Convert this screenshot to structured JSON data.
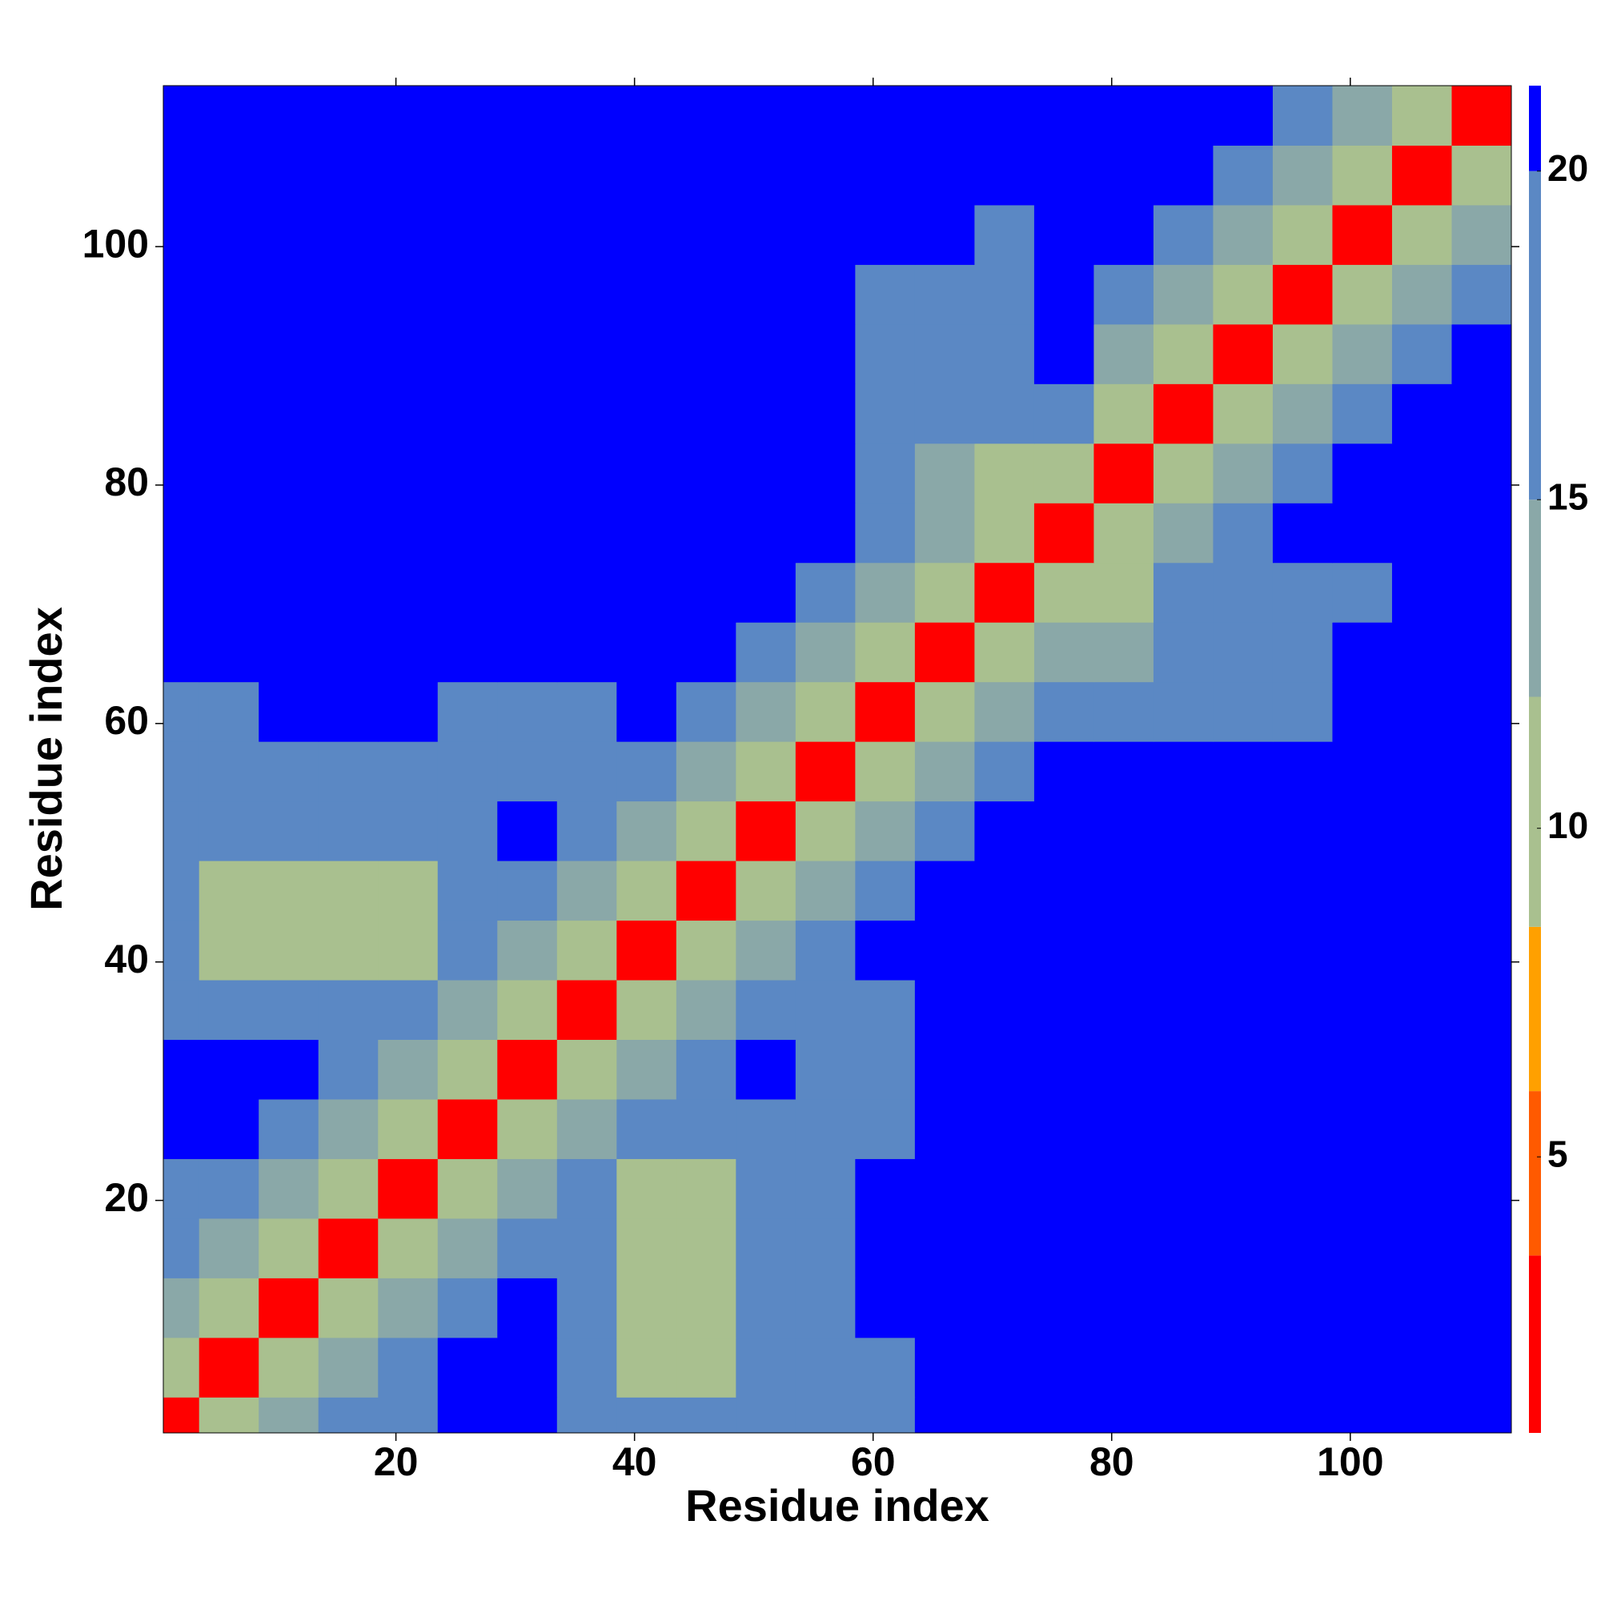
{
  "chart_data": {
    "type": "heatmap",
    "xlabel": "Residue index",
    "ylabel": "Residue index",
    "x": [
      1,
      6,
      11,
      16,
      21,
      26,
      31,
      36,
      41,
      46,
      51,
      56,
      61,
      66,
      71,
      76,
      81,
      86,
      91,
      96,
      101,
      106,
      111
    ],
    "y": [
      1,
      6,
      11,
      16,
      21,
      26,
      31,
      36,
      41,
      46,
      51,
      56,
      61,
      66,
      71,
      76,
      81,
      86,
      91,
      96,
      101,
      106,
      111
    ],
    "xlim": [
      0.5,
      113.5
    ],
    "ylim": [
      0.5,
      113.5
    ],
    "xticks": [
      20,
      40,
      60,
      80,
      100
    ],
    "yticks": [
      20,
      40,
      60,
      80,
      100
    ],
    "clim": [
      0.8,
      21.3
    ],
    "cticks": [
      5,
      10,
      15,
      20
    ],
    "colorscale": [
      {
        "max": 3.5,
        "color": "#ff0000"
      },
      {
        "max": 6,
        "color": "#ff5a00"
      },
      {
        "max": 8.5,
        "color": "#ffa000"
      },
      {
        "max": 12,
        "color": "#a9c08f"
      },
      {
        "max": 15,
        "color": "#8aa8a8"
      },
      {
        "max": 20,
        "color": "#5b88c4"
      },
      {
        "max": 21.3,
        "color": "#0000ff"
      }
    ],
    "z": [
      [
        2,
        9,
        14,
        18,
        17,
        21,
        21,
        16,
        16,
        16,
        16,
        16,
        17,
        21,
        21,
        21,
        21,
        21,
        21,
        21,
        21,
        21,
        21
      ],
      [
        9,
        2,
        9,
        14,
        18,
        21,
        21,
        16,
        12,
        12,
        16,
        16,
        17,
        21,
        21,
        21,
        21,
        21,
        21,
        21,
        21,
        21,
        21
      ],
      [
        14,
        9,
        2,
        9,
        14,
        18,
        21,
        16,
        12,
        12,
        16,
        16,
        21,
        21,
        21,
        21,
        21,
        21,
        21,
        21,
        21,
        21,
        21
      ],
      [
        18,
        14,
        9,
        2,
        9,
        14,
        18,
        16,
        12,
        12,
        16,
        16,
        21,
        21,
        21,
        21,
        21,
        21,
        21,
        21,
        21,
        21,
        21
      ],
      [
        17,
        18,
        14,
        9,
        2,
        9,
        14,
        16,
        12,
        12,
        16,
        16,
        21,
        21,
        21,
        21,
        21,
        21,
        21,
        21,
        21,
        21,
        21
      ],
      [
        21,
        21,
        18,
        14,
        9,
        2,
        9,
        14,
        17,
        17,
        17,
        17,
        17,
        21,
        21,
        21,
        21,
        21,
        21,
        21,
        21,
        21,
        21
      ],
      [
        21,
        21,
        21,
        18,
        14,
        9,
        2,
        9,
        14,
        18,
        21,
        17,
        17,
        21,
        21,
        21,
        21,
        21,
        21,
        21,
        21,
        21,
        21
      ],
      [
        16,
        16,
        16,
        16,
        16,
        14,
        9,
        2,
        9,
        14,
        18,
        17,
        17,
        21,
        21,
        21,
        21,
        21,
        21,
        21,
        21,
        21,
        21
      ],
      [
        16,
        12,
        12,
        12,
        12,
        17,
        14,
        9,
        2,
        9,
        14,
        18,
        21,
        21,
        21,
        21,
        21,
        21,
        21,
        21,
        21,
        21,
        21
      ],
      [
        16,
        12,
        12,
        12,
        12,
        17,
        18,
        14,
        9,
        2,
        9,
        14,
        18,
        21,
        21,
        21,
        21,
        21,
        21,
        21,
        21,
        21,
        21
      ],
      [
        16,
        16,
        16,
        16,
        16,
        17,
        21,
        18,
        14,
        9,
        2,
        9,
        14,
        18,
        21,
        21,
        21,
        21,
        21,
        21,
        21,
        21,
        21
      ],
      [
        16,
        16,
        16,
        16,
        16,
        17,
        17,
        17,
        18,
        14,
        9,
        2,
        9,
        14,
        18,
        21,
        21,
        21,
        21,
        21,
        21,
        21,
        21
      ],
      [
        17,
        17,
        21,
        21,
        21,
        17,
        17,
        17,
        21,
        18,
        14,
        9,
        2,
        9,
        14,
        17,
        17,
        17,
        17,
        17,
        21,
        21,
        21
      ],
      [
        21,
        21,
        21,
        21,
        21,
        21,
        21,
        21,
        21,
        21,
        18,
        14,
        9,
        2,
        9,
        14,
        15,
        17,
        17,
        17,
        21,
        21,
        21
      ],
      [
        21,
        21,
        21,
        21,
        21,
        21,
        21,
        21,
        21,
        21,
        21,
        18,
        14,
        9,
        2,
        9,
        12,
        17,
        17,
        17,
        17,
        21,
        21
      ],
      [
        21,
        21,
        21,
        21,
        21,
        21,
        21,
        21,
        21,
        21,
        21,
        21,
        17,
        14,
        9,
        2,
        9,
        14,
        18,
        21,
        21,
        21,
        21
      ],
      [
        21,
        21,
        21,
        21,
        21,
        21,
        21,
        21,
        21,
        21,
        21,
        21,
        17,
        15,
        12,
        9,
        2,
        9,
        14,
        18,
        21,
        21,
        21
      ],
      [
        21,
        21,
        21,
        21,
        21,
        21,
        21,
        21,
        21,
        21,
        21,
        21,
        17,
        17,
        17,
        18,
        9,
        2,
        9,
        14,
        18,
        21,
        21
      ],
      [
        21,
        21,
        21,
        21,
        21,
        21,
        21,
        21,
        21,
        21,
        21,
        21,
        17,
        17,
        17,
        21,
        14,
        9,
        2,
        9,
        14,
        18,
        21
      ],
      [
        21,
        21,
        21,
        21,
        21,
        21,
        21,
        21,
        21,
        21,
        21,
        21,
        17,
        17,
        17,
        21,
        18,
        14,
        9,
        2,
        9,
        14,
        18
      ],
      [
        21,
        21,
        21,
        21,
        21,
        21,
        21,
        21,
        21,
        21,
        21,
        21,
        21,
        21,
        17,
        21,
        21,
        18,
        14,
        9,
        2,
        9,
        14
      ],
      [
        21,
        21,
        21,
        21,
        21,
        21,
        21,
        21,
        21,
        21,
        21,
        21,
        21,
        21,
        21,
        21,
        21,
        21,
        18,
        14,
        9,
        2,
        9
      ],
      [
        21,
        21,
        21,
        21,
        21,
        21,
        21,
        21,
        21,
        21,
        21,
        21,
        21,
        21,
        21,
        21,
        21,
        21,
        21,
        18,
        14,
        9,
        2
      ]
    ]
  }
}
